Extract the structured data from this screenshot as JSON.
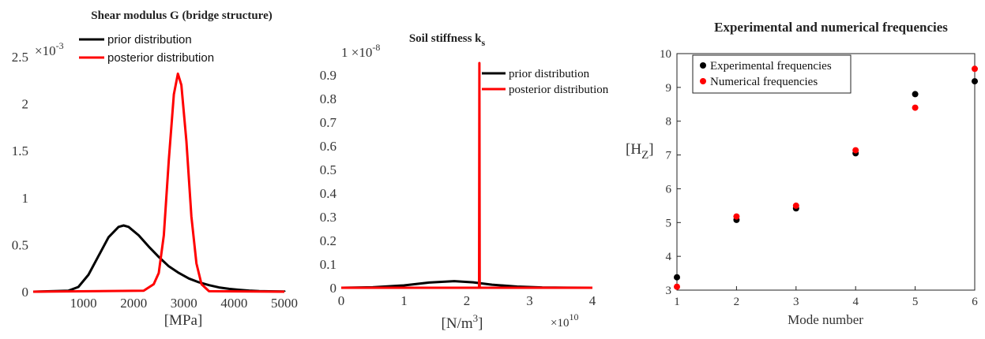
{
  "chart_data": [
    {
      "type": "line",
      "title": "Shear modulus G (bridge structure)",
      "xlabel": "[MPa]",
      "ylabel": "",
      "xlim": [
        0,
        5000
      ],
      "ylim": [
        0,
        0.0025
      ],
      "xticks": [
        "1000",
        "2000",
        "3000",
        "4000",
        "5000"
      ],
      "yticks": [
        "0",
        "0.5",
        "1",
        "1.5",
        "2",
        "2.5"
      ],
      "yexponent": "-3",
      "legend_position": "top-left",
      "series": [
        {
          "name": "prior distribution",
          "color": "#000000",
          "x": [
            700,
            900,
            1100,
            1300,
            1500,
            1700,
            1800,
            1900,
            2100,
            2300,
            2500,
            2700,
            2900,
            3100,
            3300,
            3500,
            3700,
            3900,
            4100,
            4300,
            4500,
            4700,
            5000
          ],
          "y": [
            1e-05,
            5e-05,
            0.00018,
            0.00038,
            0.00058,
            0.00069,
            0.000705,
            0.00069,
            0.0006,
            0.00048,
            0.00037,
            0.00027,
            0.0002,
            0.00014,
            0.0001,
            7e-05,
            4.5e-05,
            3e-05,
            2e-05,
            1.2e-05,
            7e-06,
            4e-06,
            2e-06
          ]
        },
        {
          "name": "posterior distribution",
          "color": "#ff0000",
          "x": [
            2200,
            2400,
            2500,
            2600,
            2700,
            2800,
            2880,
            2950,
            3050,
            3150,
            3250,
            3350,
            3500
          ],
          "y": [
            1e-05,
            8e-05,
            0.0002,
            0.0006,
            0.0014,
            0.0021,
            0.00232,
            0.0022,
            0.0016,
            0.0008,
            0.0003,
            8e-05,
            5e-06
          ]
        }
      ]
    },
    {
      "type": "line",
      "title": "Soil stiffness k",
      "title_subscript": "s",
      "xlabel": "[N/m",
      "xlabel_sup": "3",
      "xlabel_end": "]",
      "ylabel": "",
      "xlim": [
        0,
        40000000000
      ],
      "ylim": [
        0,
        1e-08
      ],
      "xticks": [
        "0",
        "1",
        "2",
        "3",
        "4"
      ],
      "yticks": [
        "0",
        "0.1",
        "0.2",
        "0.3",
        "0.4",
        "0.5",
        "0.6",
        "0.7",
        "0.8",
        "0.9",
        "1"
      ],
      "xexponent": "10",
      "yexponent": "-8",
      "legend_position": "top-right",
      "series": [
        {
          "name": "prior distribution",
          "color": "#000000",
          "x": [
            0,
            5000000000,
            10000000000,
            14000000000,
            18000000000,
            21000000000,
            24000000000,
            28000000000,
            32000000000,
            36000000000,
            40000000000
          ],
          "y": [
            0,
            2e-11,
            1e-10,
            2.2e-10,
            2.8e-10,
            2.3e-10,
            1.3e-10,
            5e-11,
            1.5e-11,
            4e-12,
            1e-12
          ]
        },
        {
          "name": "posterior distribution",
          "color": "#ff0000",
          "x": [
            0,
            21850000000,
            21950000000,
            22000000000,
            22050000000,
            22150000000,
            40000000000
          ],
          "y": [
            0,
            0,
            0,
            9.5e-09,
            0,
            0,
            0
          ]
        }
      ]
    },
    {
      "type": "scatter",
      "title": "Experimental and numerical frequencies",
      "xlabel": "Mode number",
      "ylabel": "[H",
      "ylabel_sub": "Z",
      "ylabel_end": "]",
      "xlim": [
        1,
        6
      ],
      "ylim": [
        3,
        10
      ],
      "xticks": [
        "1",
        "2",
        "3",
        "4",
        "5",
        "6"
      ],
      "yticks": [
        "3",
        "4",
        "5",
        "6",
        "7",
        "8",
        "9",
        "10"
      ],
      "legend_position": "top-left",
      "series": [
        {
          "name": "Experimental frequencies",
          "color": "#000000",
          "x": [
            1,
            2,
            3,
            4,
            5,
            6
          ],
          "y": [
            3.38,
            5.08,
            5.42,
            7.05,
            8.8,
            9.18
          ]
        },
        {
          "name": "Numerical frequencies",
          "color": "#ff0000",
          "x": [
            1,
            2,
            3,
            4,
            5,
            6
          ],
          "y": [
            3.1,
            5.18,
            5.5,
            7.14,
            8.4,
            9.55
          ]
        }
      ]
    }
  ]
}
